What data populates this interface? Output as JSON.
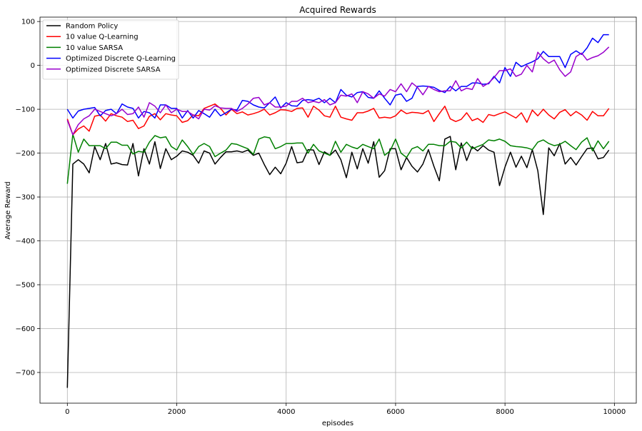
{
  "chart_data": {
    "type": "line",
    "title": "Acquired Rewards",
    "xlabel": "episodes",
    "ylabel": "Average Reward",
    "xlim": [
      -500,
      10400
    ],
    "ylim": [
      -770,
      110
    ],
    "xticks": [
      0,
      2000,
      4000,
      6000,
      8000,
      10000
    ],
    "yticks": [
      100,
      0,
      -100,
      -200,
      -300,
      -400,
      -500,
      -600,
      -700
    ],
    "ytick_labels": [
      "100",
      "0",
      "−100",
      "−200",
      "−300",
      "−400",
      "−500",
      "−600",
      "−700"
    ],
    "grid": true,
    "legend_position": "upper-left",
    "x": [
      0,
      100,
      200,
      300,
      400,
      500,
      600,
      700,
      800,
      900,
      1000,
      1100,
      1200,
      1300,
      1400,
      1500,
      1600,
      1700,
      1800,
      1900,
      2000,
      2100,
      2200,
      2300,
      2400,
      2500,
      2600,
      2700,
      2800,
      2900,
      3000,
      3100,
      3200,
      3300,
      3400,
      3500,
      3600,
      3700,
      3800,
      3900,
      4000,
      4100,
      4200,
      4300,
      4400,
      4500,
      4600,
      4700,
      4800,
      4900,
      5000,
      5100,
      5200,
      5300,
      5400,
      5500,
      5600,
      5700,
      5800,
      5900,
      6000,
      6100,
      6200,
      6300,
      6400,
      6500,
      6600,
      6700,
      6800,
      6900,
      7000,
      7100,
      7200,
      7300,
      7400,
      7500,
      7600,
      7700,
      7800,
      7900,
      8000,
      8100,
      8200,
      8300,
      8400,
      8500,
      8600,
      8700,
      8800,
      8900,
      9000,
      9100,
      9200,
      9300,
      9400,
      9500,
      9600,
      9700,
      9800,
      9900
    ],
    "series": [
      {
        "name": "Random Policy",
        "color": "#000000",
        "values": [
          -735,
          -225,
          -215,
          -225,
          -245,
          -185,
          -215,
          -178,
          -225,
          -222,
          -226,
          -227,
          -178,
          -252,
          -190,
          -225,
          -174,
          -235,
          -190,
          -215,
          -207,
          -195,
          -198,
          -205,
          -223,
          -195,
          -200,
          -225,
          -210,
          -197,
          -197,
          -195,
          -198,
          -193,
          -205,
          -200,
          -226,
          -249,
          -232,
          -247,
          -223,
          -185,
          -222,
          -220,
          -192,
          -193,
          -226,
          -197,
          -205,
          -193,
          -215,
          -256,
          -198,
          -236,
          -190,
          -223,
          -174,
          -255,
          -240,
          -190,
          -190,
          -238,
          -210,
          -230,
          -243,
          -225,
          -192,
          -230,
          -263,
          -168,
          -162,
          -238,
          -177,
          -217,
          -185,
          -195,
          -183,
          -193,
          -198,
          -274,
          -232,
          -198,
          -232,
          -207,
          -233,
          -192,
          -240,
          -340,
          -188,
          -206,
          -178,
          -225,
          -210,
          -227,
          -208,
          -190,
          -188,
          -213,
          -210,
          -193
        ]
      },
      {
        "name": "10 value Q-Learning",
        "color": "#ff0000",
        "values": [
          -122,
          -158,
          -145,
          -138,
          -150,
          -116,
          -113,
          -127,
          -110,
          -115,
          -118,
          -128,
          -125,
          -144,
          -138,
          -116,
          -110,
          -124,
          -110,
          -113,
          -115,
          -130,
          -126,
          -113,
          -115,
          -98,
          -93,
          -88,
          -98,
          -113,
          -100,
          -110,
          -106,
          -113,
          -110,
          -106,
          -100,
          -113,
          -108,
          -101,
          -102,
          -105,
          -98,
          -97,
          -118,
          -93,
          -102,
          -115,
          -118,
          -93,
          -118,
          -122,
          -125,
          -108,
          -108,
          -104,
          -98,
          -120,
          -118,
          -120,
          -115,
          -102,
          -110,
          -107,
          -108,
          -110,
          -103,
          -128,
          -110,
          -93,
          -122,
          -128,
          -123,
          -108,
          -126,
          -121,
          -130,
          -112,
          -115,
          -110,
          -106,
          -113,
          -120,
          -108,
          -130,
          -102,
          -115,
          -100,
          -113,
          -122,
          -107,
          -101,
          -115,
          -105,
          -113,
          -125,
          -105,
          -115,
          -115,
          -98
        ]
      },
      {
        "name": "10 value SARSA",
        "color": "#008000",
        "values": [
          -270,
          -157,
          -198,
          -168,
          -183,
          -183,
          -183,
          -190,
          -175,
          -175,
          -182,
          -182,
          -202,
          -196,
          -198,
          -175,
          -160,
          -165,
          -163,
          -185,
          -193,
          -170,
          -185,
          -203,
          -185,
          -178,
          -185,
          -208,
          -200,
          -193,
          -178,
          -180,
          -185,
          -190,
          -203,
          -168,
          -163,
          -165,
          -190,
          -185,
          -178,
          -178,
          -177,
          -177,
          -200,
          -180,
          -195,
          -200,
          -205,
          -173,
          -198,
          -180,
          -186,
          -190,
          -180,
          -185,
          -190,
          -168,
          -205,
          -195,
          -168,
          -200,
          -210,
          -190,
          -185,
          -195,
          -180,
          -180,
          -183,
          -183,
          -173,
          -175,
          -188,
          -175,
          -190,
          -185,
          -180,
          -170,
          -172,
          -168,
          -173,
          -183,
          -185,
          -186,
          -188,
          -192,
          -175,
          -170,
          -178,
          -183,
          -180,
          -173,
          -183,
          -192,
          -175,
          -165,
          -195,
          -172,
          -190,
          -173
        ]
      },
      {
        "name": "Optimized Discrete Q-Learning",
        "color": "#0000ff",
        "values": [
          -100,
          -120,
          -104,
          -100,
          -98,
          -96,
          -115,
          -103,
          -100,
          -110,
          -88,
          -95,
          -98,
          -120,
          -105,
          -108,
          -120,
          -90,
          -90,
          -98,
          -98,
          -120,
          -103,
          -120,
          -103,
          -110,
          -118,
          -100,
          -115,
          -108,
          -100,
          -102,
          -80,
          -82,
          -90,
          -95,
          -97,
          -85,
          -72,
          -97,
          -85,
          -92,
          -93,
          -80,
          -78,
          -80,
          -75,
          -85,
          -75,
          -85,
          -55,
          -68,
          -72,
          -62,
          -60,
          -73,
          -75,
          -58,
          -75,
          -90,
          -68,
          -65,
          -82,
          -75,
          -48,
          -47,
          -48,
          -50,
          -57,
          -62,
          -48,
          -58,
          -48,
          -48,
          -40,
          -40,
          -43,
          -42,
          -25,
          -40,
          -5,
          -25,
          7,
          -3,
          3,
          8,
          15,
          32,
          20,
          20,
          20,
          -5,
          25,
          33,
          25,
          40,
          62,
          52,
          70,
          70
        ]
      },
      {
        "name": "Optimized Discrete SARSA",
        "color": "#9900cc",
        "values": [
          -125,
          -158,
          -135,
          -122,
          -115,
          -100,
          -105,
          -110,
          -115,
          -110,
          -100,
          -112,
          -110,
          -95,
          -118,
          -85,
          -93,
          -108,
          -90,
          -108,
          -100,
          -105,
          -105,
          -113,
          -122,
          -100,
          -102,
          -92,
          -97,
          -98,
          -98,
          -105,
          -98,
          -88,
          -75,
          -73,
          -90,
          -85,
          -95,
          -95,
          -93,
          -82,
          -82,
          -75,
          -85,
          -82,
          -85,
          -78,
          -90,
          -85,
          -68,
          -70,
          -65,
          -85,
          -60,
          -65,
          -75,
          -65,
          -70,
          -55,
          -60,
          -42,
          -60,
          -40,
          -50,
          -67,
          -48,
          -55,
          -60,
          -58,
          -58,
          -35,
          -58,
          -52,
          -55,
          -30,
          -48,
          -40,
          -28,
          -12,
          -12,
          -8,
          -25,
          -20,
          0,
          -15,
          30,
          15,
          5,
          12,
          -10,
          -25,
          -15,
          20,
          28,
          12,
          18,
          22,
          30,
          42
        ]
      }
    ]
  }
}
